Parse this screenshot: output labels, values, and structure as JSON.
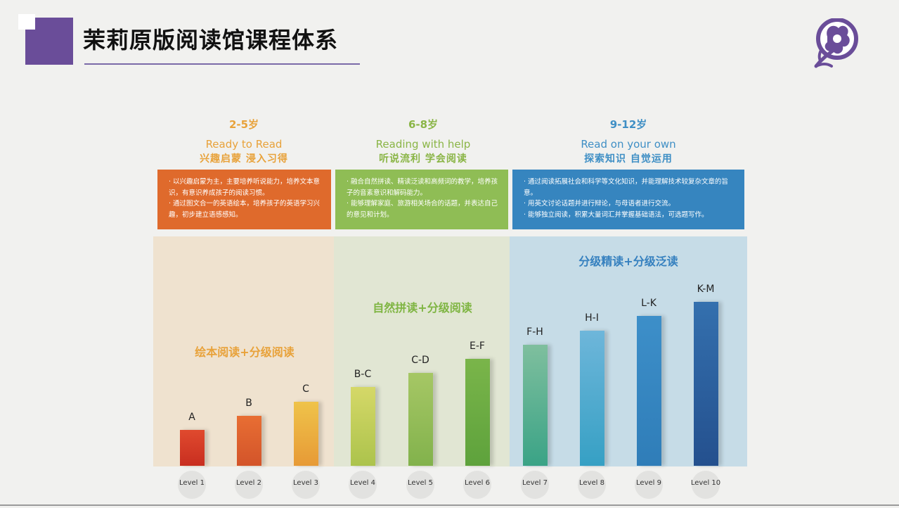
{
  "header": {
    "title": "茉莉原版阅读馆课程体系",
    "logo_icon": "jasmine-flower-logo",
    "accent_color": "#6a4d99"
  },
  "stages": [
    {
      "age": "2-5岁",
      "english": "Ready to Read",
      "chinese": "兴趣启蒙  浸入习得",
      "color": "#e8a23a",
      "box_color": "#df6a2c",
      "description": [
        "· 以兴趣启蒙为主，主要培养听说能力，培养文本意识，有意识养成孩子的阅读习惯。",
        "· 通过图文合一的英语绘本，培养孩子的英语学习兴趣，初步建立语感感知。"
      ],
      "panel_title": "绘本阅读+分级阅读",
      "panel_color": "#efe2cf"
    },
    {
      "age": "6-8岁",
      "english": "Reading with help",
      "chinese": "听说流利  学会阅读",
      "color": "#8ab546",
      "box_color": "#8fbd55",
      "description": [
        "· 融合自然拼读、精读泛读和高频词的教学，培养孩子的音素意识和解码能力。",
        "· 能够理解家庭、旅游相关场合的话题，并表达自己的意见和计划。"
      ],
      "panel_title": "自然拼读+分级阅读",
      "panel_color": "#e1e6d3"
    },
    {
      "age": "9-12岁",
      "english": "Read on your own",
      "chinese": "探索知识  自觉运用",
      "color": "#3f8fc5",
      "box_color": "#3685bf",
      "description": [
        "· 通过阅读拓展社会和科学等文化知识，并能理解技术较复杂文章的旨意。",
        "· 用英文讨论话题并进行辩论，与母语者进行交流。",
        "· 能够独立阅读，积累大量词汇并掌握基础语法，可选题写作。"
      ],
      "panel_title": "分级精读+分级泛读",
      "panel_color": "#c6dce7"
    }
  ],
  "levels": [
    {
      "label": "Level 1",
      "range": "A",
      "rank": 1,
      "color_top": "#e04a2e",
      "color_bottom": "#c82e20"
    },
    {
      "label": "Level 2",
      "range": "B",
      "rank": 2,
      "color_top": "#e86e33",
      "color_bottom": "#d3542a"
    },
    {
      "label": "Level 3",
      "range": "C",
      "rank": 3,
      "color_top": "#efc34a",
      "color_bottom": "#e79a36"
    },
    {
      "label": "Level 4",
      "range": "B-C",
      "rank": 4,
      "color_top": "#d5d868",
      "color_bottom": "#acc34c"
    },
    {
      "label": "Level 5",
      "range": "C-D",
      "rank": 5,
      "color_top": "#a6c765",
      "color_bottom": "#82b24c"
    },
    {
      "label": "Level 6",
      "range": "E-F",
      "rank": 6,
      "color_top": "#7ab54a",
      "color_bottom": "#5ea23c"
    },
    {
      "label": "Level 7",
      "range": "F-H",
      "rank": 7,
      "color_top": "#7fbf9e",
      "color_bottom": "#3aa386"
    },
    {
      "label": "Level 8",
      "range": "H-I",
      "rank": 8,
      "color_top": "#6eb6da",
      "color_bottom": "#36a0c4"
    },
    {
      "label": "Level 9",
      "range": "L-K",
      "rank": 9,
      "color_top": "#3d8fc9",
      "color_bottom": "#2f7db8"
    },
    {
      "label": "Level 10",
      "range": "K-M",
      "rank": 10,
      "color_top": "#3470ae",
      "color_bottom": "#24508e"
    }
  ]
}
